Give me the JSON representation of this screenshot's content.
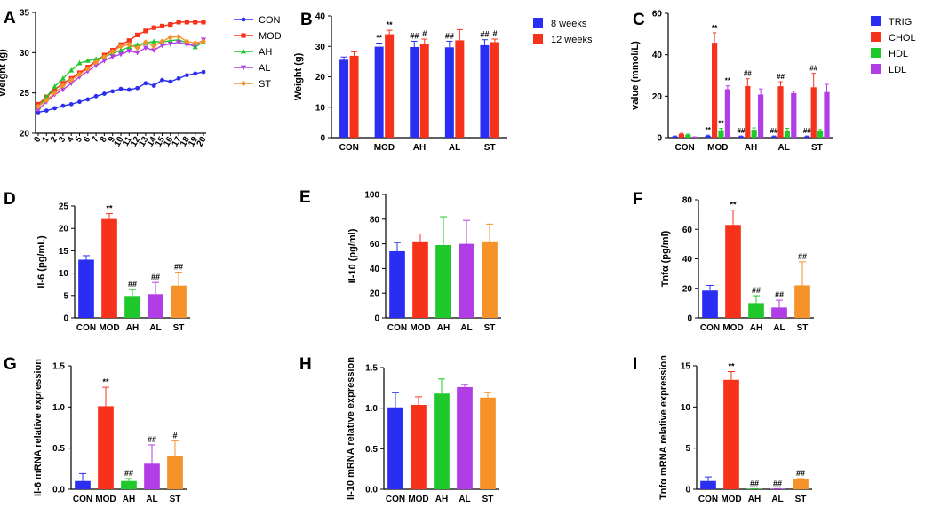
{
  "colors": {
    "blue": "#2a2ef2",
    "red": "#f7321a",
    "green": "#1fc92b",
    "purple": "#b13de6",
    "orange": "#f5922a",
    "axis": "#000000"
  },
  "chart_data": [
    {
      "id": "A",
      "panel_label": "A",
      "type": "line",
      "ylabel": "Weight (g)",
      "xlabel": "",
      "ylim": [
        20,
        35
      ],
      "yticks": [
        "20",
        "25",
        "30",
        "35"
      ],
      "categories": [
        "0",
        "1",
        "2",
        "3",
        "4",
        "5",
        "6",
        "7",
        "8",
        "9",
        "10",
        "11",
        "12",
        "13",
        "14",
        "15",
        "16",
        "17",
        "18",
        "19",
        "20"
      ],
      "legend": "right",
      "series": [
        {
          "name": "CON",
          "color": "#2a2ef2",
          "marker": "circle",
          "values": [
            22.6,
            22.8,
            23.1,
            23.4,
            23.6,
            23.9,
            24.2,
            24.6,
            24.9,
            25.2,
            25.5,
            25.4,
            25.6,
            26.2,
            25.9,
            26.6,
            26.4,
            26.8,
            27.2,
            27.4,
            27.6
          ]
        },
        {
          "name": "MOD",
          "color": "#f7321a",
          "marker": "square",
          "values": [
            23.6,
            24.5,
            25.4,
            26.2,
            26.8,
            27.5,
            28.2,
            29.0,
            29.7,
            30.3,
            31.0,
            31.5,
            32.2,
            32.7,
            33.1,
            33.3,
            33.5,
            33.8,
            33.8,
            33.8,
            33.8
          ]
        },
        {
          "name": "AH",
          "color": "#1fc92b",
          "marker": "triangle",
          "values": [
            23.2,
            24.5,
            25.8,
            26.8,
            27.8,
            28.7,
            29.0,
            29.2,
            29.5,
            29.9,
            30.3,
            30.7,
            31.0,
            31.2,
            31.4,
            31.3,
            31.5,
            31.6,
            31.2,
            30.7,
            31.3
          ]
        },
        {
          "name": "AL",
          "color": "#b13de6",
          "marker": "triangle-down",
          "values": [
            22.9,
            23.9,
            24.8,
            25.4,
            26.2,
            27.0,
            27.7,
            28.4,
            29.0,
            29.5,
            29.8,
            30.2,
            30.0,
            30.6,
            30.3,
            30.9,
            31.1,
            31.3,
            31.0,
            30.9,
            31.6
          ]
        },
        {
          "name": "ST",
          "color": "#f5922a",
          "marker": "diamond",
          "values": [
            23.3,
            24.1,
            25.0,
            25.9,
            26.6,
            27.3,
            28.0,
            28.8,
            29.5,
            30.1,
            30.8,
            31.0,
            30.6,
            31.3,
            30.8,
            31.4,
            31.9,
            32.0,
            31.4,
            31.2,
            31.4
          ]
        }
      ]
    },
    {
      "id": "B",
      "panel_label": "B",
      "type": "bar",
      "ylabel": "Weight (g)",
      "xlabel": "",
      "ylim": [
        0,
        40
      ],
      "yticks": [
        "0",
        "10",
        "20",
        "30",
        "40"
      ],
      "categories": [
        "CON",
        "MOD",
        "AH",
        "AL",
        "ST"
      ],
      "legend": "top-right",
      "series": [
        {
          "name": "8 weeks",
          "color": "#2a2ef2",
          "values": [
            25.6,
            29.9,
            29.8,
            29.7,
            30.4
          ],
          "errors": [
            0.9,
            1.2,
            1.9,
            2.0,
            1.8
          ],
          "annotations": [
            "",
            "**",
            "##",
            "##",
            "##"
          ]
        },
        {
          "name": "12 weeks",
          "color": "#f7321a",
          "values": [
            26.9,
            34.0,
            30.9,
            32.0,
            31.4
          ],
          "errors": [
            1.3,
            1.3,
            1.5,
            3.5,
            1.0
          ],
          "annotations": [
            "",
            "**",
            "#",
            "",
            "#"
          ]
        }
      ]
    },
    {
      "id": "C",
      "panel_label": "C",
      "type": "bar",
      "ylabel": "value (mmol/L)",
      "xlabel": "",
      "ylim": [
        0,
        60
      ],
      "yticks": [
        "0",
        "20",
        "40",
        "60"
      ],
      "categories": [
        "CON",
        "MOD",
        "AH",
        "AL",
        "ST"
      ],
      "legend": "top-right",
      "series": [
        {
          "name": "TRIG",
          "color": "#2a2ef2",
          "values": [
            0.6,
            0.9,
            0.6,
            0.6,
            0.6
          ],
          "errors": [
            0.2,
            0.3,
            0.2,
            0.2,
            0.2
          ],
          "annotations": [
            "",
            "**",
            "##",
            "##",
            "##"
          ]
        },
        {
          "name": "CHOL",
          "color": "#f7321a",
          "values": [
            1.8,
            45.8,
            24.9,
            24.8,
            24.3
          ],
          "errors": [
            0.3,
            4.8,
            3.5,
            2.2,
            6.7
          ],
          "annotations": [
            "",
            "**",
            "##",
            "##",
            "##"
          ]
        },
        {
          "name": "HDL",
          "color": "#1fc92b",
          "values": [
            1.4,
            3.6,
            3.8,
            3.5,
            3.0
          ],
          "errors": [
            0.3,
            0.9,
            0.9,
            1.0,
            0.9
          ],
          "annotations": [
            "",
            "**",
            "",
            "",
            ""
          ]
        },
        {
          "name": "LDL",
          "color": "#b13de6",
          "values": [
            0.3,
            23.4,
            20.8,
            21.5,
            22.0
          ],
          "errors": [
            0.1,
            1.6,
            2.7,
            0.9,
            3.7
          ],
          "annotations": [
            "",
            "**",
            "",
            "",
            ""
          ]
        }
      ]
    },
    {
      "id": "D",
      "panel_label": "D",
      "type": "bar",
      "ylabel": "Il-6 (pg/mL)",
      "xlabel": "",
      "ylim": [
        0,
        25
      ],
      "yticks": [
        "0",
        "5",
        "10",
        "15",
        "20",
        "25"
      ],
      "categories": [
        "CON",
        "MOD",
        "AH",
        "AL",
        "ST"
      ],
      "values": [
        13.0,
        22.1,
        4.9,
        5.3,
        7.2
      ],
      "errors": [
        0.9,
        1.2,
        1.4,
        2.6,
        3.0
      ],
      "annotations": [
        "",
        "**",
        "##",
        "##",
        "##"
      ],
      "bar_colors": [
        "#2a2ef2",
        "#f7321a",
        "#1fc92b",
        "#b13de6",
        "#f5922a"
      ]
    },
    {
      "id": "E",
      "panel_label": "E",
      "type": "bar",
      "ylabel": "Il-10 (pg/ml)",
      "xlabel": "",
      "ylim": [
        0,
        100
      ],
      "yticks": [
        "0",
        "20",
        "40",
        "60",
        "80",
        "100"
      ],
      "categories": [
        "CON",
        "MOD",
        "AH",
        "AL",
        "ST"
      ],
      "values": [
        54,
        62,
        59,
        60,
        62
      ],
      "errors": [
        7,
        6,
        23,
        19,
        14
      ],
      "annotations": [
        "",
        "",
        "",
        "",
        ""
      ],
      "bar_colors": [
        "#2a2ef2",
        "#f7321a",
        "#1fc92b",
        "#b13de6",
        "#f5922a"
      ]
    },
    {
      "id": "F",
      "panel_label": "F",
      "type": "bar",
      "ylabel": "Tnfα (pg/ml)",
      "xlabel": "",
      "ylim": [
        0,
        80
      ],
      "yticks": [
        "0",
        "20",
        "40",
        "60",
        "80"
      ],
      "categories": [
        "CON",
        "MOD",
        "AH",
        "AL",
        "ST"
      ],
      "values": [
        18.5,
        63,
        10,
        7,
        22
      ],
      "errors": [
        3.5,
        10,
        5,
        5,
        16
      ],
      "annotations": [
        "",
        "**",
        "##",
        "##",
        "##"
      ],
      "bar_colors": [
        "#2a2ef2",
        "#f7321a",
        "#1fc92b",
        "#b13de6",
        "#f5922a"
      ]
    },
    {
      "id": "G",
      "panel_label": "G",
      "type": "bar",
      "ylabel": "Il-6 mRNA relative expression",
      "xlabel": "",
      "ylim": [
        0,
        1.5
      ],
      "yticks": [
        "0.0",
        "0.5",
        "1.0",
        "1.5"
      ],
      "categories": [
        "CON",
        "MOD",
        "AH",
        "AL",
        "ST"
      ],
      "values": [
        0.1,
        1.01,
        0.1,
        0.31,
        0.4
      ],
      "errors": [
        0.09,
        0.23,
        0.03,
        0.23,
        0.19
      ],
      "annotations": [
        "",
        "**",
        "##",
        "##",
        "#"
      ],
      "bar_colors": [
        "#2a2ef2",
        "#f7321a",
        "#1fc92b",
        "#b13de6",
        "#f5922a"
      ]
    },
    {
      "id": "H",
      "panel_label": "H",
      "type": "bar",
      "ylabel": "Il-10 mRNA relative expression",
      "xlabel": "",
      "ylim": [
        0,
        1.5
      ],
      "yticks": [
        "0.0",
        "0.5",
        "1.0",
        "1.5"
      ],
      "categories": [
        "CON",
        "MOD",
        "AH",
        "AL",
        "ST"
      ],
      "values": [
        1.01,
        1.04,
        1.18,
        1.26,
        1.13
      ],
      "errors": [
        0.18,
        0.1,
        0.18,
        0.03,
        0.06
      ],
      "annotations": [
        "",
        "",
        "",
        "",
        ""
      ],
      "bar_colors": [
        "#2a2ef2",
        "#f7321a",
        "#1fc92b",
        "#b13de6",
        "#f5922a"
      ]
    },
    {
      "id": "I",
      "panel_label": "I",
      "type": "bar",
      "ylabel": "Tnfα mRNA relative expression",
      "xlabel": "",
      "ylim": [
        0,
        15
      ],
      "yticks": [
        "0",
        "5",
        "10",
        "15"
      ],
      "categories": [
        "CON",
        "MOD",
        "AH",
        "AL",
        "ST"
      ],
      "values": [
        1.0,
        13.3,
        0.05,
        0.05,
        1.2
      ],
      "errors": [
        0.5,
        1.0,
        0.02,
        0.02,
        0.1
      ],
      "annotations": [
        "",
        "**",
        "##",
        "##",
        "##"
      ],
      "bar_colors": [
        "#2a2ef2",
        "#f7321a",
        "#1fc92b",
        "#b13de6",
        "#f5922a"
      ]
    }
  ]
}
